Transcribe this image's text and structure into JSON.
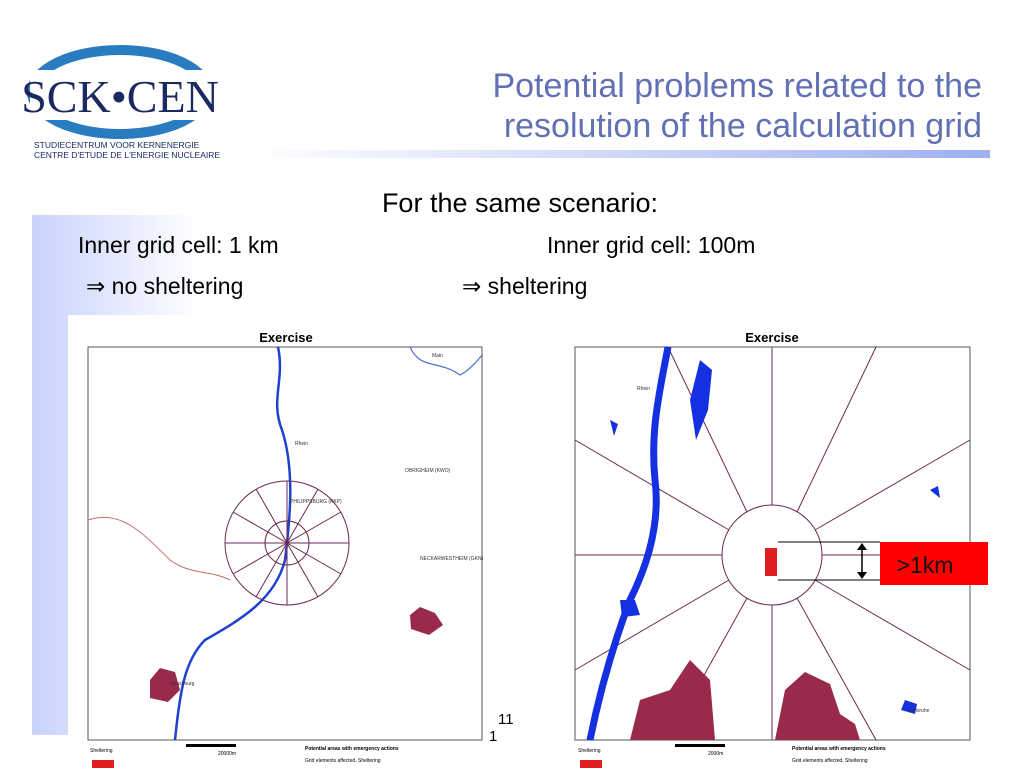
{
  "logo": {
    "name": "SCK•CEN",
    "line1": "STUDIECENTRUM VOOR KERNENERGIE",
    "line2": "CENTRE D'ETUDE DE L'ENERGIE NUCLEAIRE"
  },
  "header": {
    "title_line1": "Potential problems related to the",
    "title_line2": "resolution of the calculation grid"
  },
  "body": {
    "subtitle": "For the same scenario:",
    "left_label": "Inner grid cell: 1 km",
    "left_result": "⇒ no sheltering",
    "right_label": "Inner grid cell: 100m",
    "right_result": "⇒ sheltering"
  },
  "maps": [
    {
      "title": "Exercise",
      "labels": [
        "Main",
        "Rhein",
        "PHILIPPSBURG (KKP)",
        "OBRIGHEIM (KWO)",
        "NECKARWESTHEIM (GKN)",
        "Strasbourg"
      ],
      "legend_label": "Sheltering",
      "scale": "20000m",
      "legend_title": "Potential areas with emergency actions",
      "legend_text": "Grid elements affected, Sheltering"
    },
    {
      "title": "Exercise",
      "labels": [
        "Rhein",
        "Karlsruhe"
      ],
      "legend_label": "Sheltering",
      "scale": "2000m",
      "legend_title": "Potential areas with emergency actions",
      "legend_text": "Grid elements affected, Sheltering"
    }
  ],
  "annotation": ">1km",
  "page_number": "11",
  "page_number_sub": "1"
}
